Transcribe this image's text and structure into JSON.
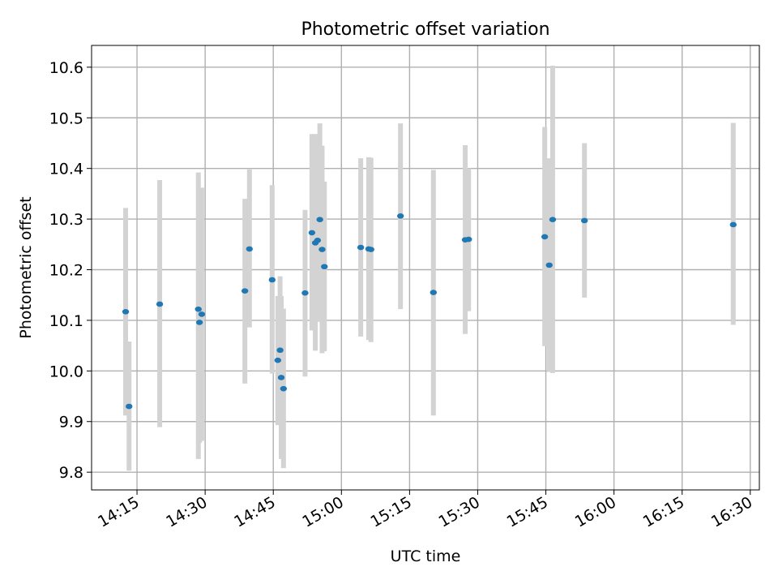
{
  "chart_data": {
    "type": "scatter",
    "title": "Photometric offset variation",
    "xlabel": "UTC time",
    "ylabel": "Photometric offset",
    "xlim": [
      "14:05",
      "16:32"
    ],
    "ylim": [
      9.765,
      10.643
    ],
    "x_ticks": [
      "14:15",
      "14:30",
      "14:45",
      "15:00",
      "15:15",
      "15:30",
      "15:45",
      "16:00",
      "16:15",
      "16:30"
    ],
    "y_ticks": [
      "9.8",
      "9.9",
      "10.0",
      "10.1",
      "10.2",
      "10.3",
      "10.4",
      "10.5",
      "10.6"
    ],
    "grid": true,
    "marker_color": "#1f77b4",
    "errorbar_color": "#d3d3d3",
    "points": [
      {
        "x": "14:12:30",
        "y": 10.117,
        "lo": 9.912,
        "hi": 10.322
      },
      {
        "x": "14:13:15",
        "y": 9.93,
        "lo": 9.803,
        "hi": 10.058
      },
      {
        "x": "14:20:00",
        "y": 10.132,
        "lo": 9.889,
        "hi": 10.377
      },
      {
        "x": "14:28:30",
        "y": 10.122,
        "lo": 9.826,
        "hi": 10.392
      },
      {
        "x": "14:28:45",
        "y": 10.096,
        "lo": 9.858,
        "hi": 10.334
      },
      {
        "x": "14:29:15",
        "y": 10.112,
        "lo": 9.862,
        "hi": 10.362
      },
      {
        "x": "14:38:45",
        "y": 10.158,
        "lo": 9.975,
        "hi": 10.34
      },
      {
        "x": "14:39:45",
        "y": 10.241,
        "lo": 10.086,
        "hi": 10.398
      },
      {
        "x": "14:44:45",
        "y": 10.18,
        "lo": 9.995,
        "hi": 10.367
      },
      {
        "x": "14:46:00",
        "y": 10.021,
        "lo": 9.893,
        "hi": 10.148
      },
      {
        "x": "14:46:30",
        "y": 10.041,
        "lo": 9.895,
        "hi": 10.187
      },
      {
        "x": "14:46:45",
        "y": 9.987,
        "lo": 9.826,
        "hi": 10.148
      },
      {
        "x": "14:47:15",
        "y": 9.965,
        "lo": 9.808,
        "hi": 10.123
      },
      {
        "x": "14:52:00",
        "y": 10.154,
        "lo": 9.989,
        "hi": 10.318
      },
      {
        "x": "14:53:30",
        "y": 10.273,
        "lo": 10.08,
        "hi": 10.468
      },
      {
        "x": "14:54:15",
        "y": 10.253,
        "lo": 10.04,
        "hi": 10.468
      },
      {
        "x": "14:54:45",
        "y": 10.258,
        "lo": 10.097,
        "hi": 10.421
      },
      {
        "x": "14:55:15",
        "y": 10.299,
        "lo": 10.108,
        "hi": 10.489
      },
      {
        "x": "14:55:45",
        "y": 10.24,
        "lo": 10.035,
        "hi": 10.445
      },
      {
        "x": "14:56:15",
        "y": 10.206,
        "lo": 10.039,
        "hi": 10.374
      },
      {
        "x": "15:04:15",
        "y": 10.244,
        "lo": 10.068,
        "hi": 10.42
      },
      {
        "x": "15:06:00",
        "y": 10.241,
        "lo": 10.061,
        "hi": 10.422
      },
      {
        "x": "15:06:30",
        "y": 10.24,
        "lo": 10.057,
        "hi": 10.421
      },
      {
        "x": "15:13:00",
        "y": 10.306,
        "lo": 10.122,
        "hi": 10.489
      },
      {
        "x": "15:20:15",
        "y": 10.155,
        "lo": 9.912,
        "hi": 10.397
      },
      {
        "x": "15:27:15",
        "y": 10.259,
        "lo": 10.073,
        "hi": 10.446
      },
      {
        "x": "15:28:00",
        "y": 10.26,
        "lo": 10.118,
        "hi": 10.4
      },
      {
        "x": "15:44:45",
        "y": 10.265,
        "lo": 10.049,
        "hi": 10.482
      },
      {
        "x": "15:45:45",
        "y": 10.209,
        "lo": 9.998,
        "hi": 10.42
      },
      {
        "x": "15:46:30",
        "y": 10.299,
        "lo": 9.996,
        "hi": 10.603
      },
      {
        "x": "15:53:30",
        "y": 10.297,
        "lo": 10.145,
        "hi": 10.45
      },
      {
        "x": "16:26:15",
        "y": 10.289,
        "lo": 10.091,
        "hi": 10.49
      }
    ]
  }
}
